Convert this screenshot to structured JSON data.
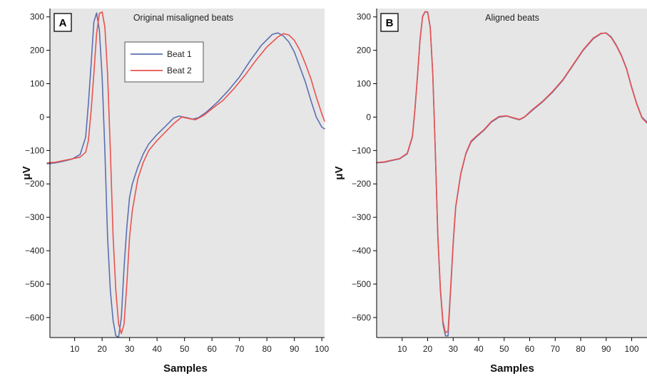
{
  "chart_data": [
    {
      "type": "line",
      "panel_label": "A",
      "title": "Original misaligned beats",
      "xlabel": "Samples",
      "ylabel": "μV",
      "xlim": [
        1,
        101
      ],
      "ylim": [
        -660,
        325
      ],
      "xticks": [
        10,
        20,
        30,
        40,
        50,
        60,
        70,
        80,
        90,
        100
      ],
      "yticks": [
        300,
        200,
        100,
        0,
        -100,
        -200,
        -300,
        -400,
        -500,
        -600
      ],
      "ytick_labels": [
        "300",
        "200",
        "100",
        "0",
        "−100",
        "−200",
        "−300",
        "−400",
        "−500",
        "−600"
      ],
      "grid": false,
      "legend": {
        "position": "top-center",
        "entries": [
          "Beat 1",
          "Beat 2"
        ]
      },
      "series": [
        {
          "name": "Beat 1",
          "color": "#5b6fb0",
          "points": [
            [
              0,
              -140
            ],
            [
              3,
              -137
            ],
            [
              6,
              -132
            ],
            [
              9,
              -126
            ],
            [
              12,
              -112
            ],
            [
              14,
              -60
            ],
            [
              15,
              40
            ],
            [
              16,
              160
            ],
            [
              17,
              285
            ],
            [
              18,
              312
            ],
            [
              19,
              260
            ],
            [
              20,
              120
            ],
            [
              21,
              -100
            ],
            [
              22,
              -360
            ],
            [
              23,
              -520
            ],
            [
              24,
              -610
            ],
            [
              25,
              -655
            ],
            [
              26,
              -658
            ],
            [
              27,
              -600
            ],
            [
              28,
              -450
            ],
            [
              29,
              -330
            ],
            [
              30,
              -240
            ],
            [
              31,
              -200
            ],
            [
              33,
              -150
            ],
            [
              35,
              -110
            ],
            [
              37,
              -80
            ],
            [
              40,
              -52
            ],
            [
              43,
              -28
            ],
            [
              46,
              -3
            ],
            [
              48,
              3
            ],
            [
              51,
              -2
            ],
            [
              53,
              -6
            ],
            [
              55,
              -2
            ],
            [
              58,
              15
            ],
            [
              62,
              45
            ],
            [
              66,
              80
            ],
            [
              70,
              120
            ],
            [
              74,
              170
            ],
            [
              78,
              215
            ],
            [
              82,
              248
            ],
            [
              84,
              252
            ],
            [
              86,
              243
            ],
            [
              88,
              225
            ],
            [
              90,
              195
            ],
            [
              92,
              150
            ],
            [
              94,
              105
            ],
            [
              96,
              50
            ],
            [
              98,
              0
            ],
            [
              100,
              -30
            ],
            [
              101,
              -35
            ]
          ]
        },
        {
          "name": "Beat 2",
          "color": "#e8524f",
          "points": [
            [
              0,
              -137
            ],
            [
              3,
              -135
            ],
            [
              6,
              -130
            ],
            [
              9,
              -125
            ],
            [
              12,
              -120
            ],
            [
              14,
              -105
            ],
            [
              15,
              -70
            ],
            [
              16,
              20
            ],
            [
              17,
              130
            ],
            [
              18,
              250
            ],
            [
              19,
              310
            ],
            [
              20,
              315
            ],
            [
              21,
              270
            ],
            [
              22,
              130
            ],
            [
              23,
              -100
            ],
            [
              24,
              -360
            ],
            [
              25,
              -520
            ],
            [
              26,
              -620
            ],
            [
              27,
              -648
            ],
            [
              28,
              -620
            ],
            [
              29,
              -500
            ],
            [
              30,
              -360
            ],
            [
              31,
              -280
            ],
            [
              33,
              -185
            ],
            [
              35,
              -135
            ],
            [
              37,
              -100
            ],
            [
              40,
              -70
            ],
            [
              43,
              -45
            ],
            [
              46,
              -20
            ],
            [
              49,
              0
            ],
            [
              52,
              -5
            ],
            [
              54,
              -8
            ],
            [
              57,
              5
            ],
            [
              60,
              25
            ],
            [
              64,
              50
            ],
            [
              68,
              85
            ],
            [
              72,
              125
            ],
            [
              76,
              170
            ],
            [
              80,
              210
            ],
            [
              84,
              240
            ],
            [
              86,
              250
            ],
            [
              88,
              246
            ],
            [
              90,
              230
            ],
            [
              92,
              200
            ],
            [
              94,
              160
            ],
            [
              96,
              115
            ],
            [
              98,
              60
            ],
            [
              100,
              10
            ],
            [
              101,
              -12
            ]
          ]
        }
      ]
    },
    {
      "type": "line",
      "panel_label": "B",
      "title": "Aligned beats",
      "xlabel": "Samples",
      "ylabel": "μV",
      "xlim": [
        0,
        106
      ],
      "ylim": [
        -660,
        325
      ],
      "xticks": [
        10,
        20,
        30,
        40,
        50,
        60,
        70,
        80,
        90,
        100
      ],
      "yticks": [
        300,
        200,
        100,
        0,
        -100,
        -200,
        -300,
        -400,
        -500,
        -600
      ],
      "ytick_labels": [
        "300",
        "200",
        "100",
        "0",
        "−100",
        "−200",
        "−300",
        "−400",
        "−500",
        "−600"
      ],
      "grid": false,
      "series": [
        {
          "name": "Beat 1",
          "color": "#5b6fb0",
          "points": [
            [
              0,
              -137
            ],
            [
              3,
              -135
            ],
            [
              6,
              -130
            ],
            [
              9,
              -125
            ],
            [
              12,
              -110
            ],
            [
              14,
              -60
            ],
            [
              15,
              20
            ],
            [
              16,
              120
            ],
            [
              17,
              230
            ],
            [
              18,
              300
            ],
            [
              19,
              315
            ],
            [
              20,
              315
            ],
            [
              21,
              270
            ],
            [
              22,
              130
            ],
            [
              23,
              -100
            ],
            [
              24,
              -360
            ],
            [
              25,
              -520
            ],
            [
              26,
              -620
            ],
            [
              27,
              -655
            ],
            [
              28,
              -655
            ],
            [
              29,
              -520
            ],
            [
              30,
              -380
            ],
            [
              31,
              -270
            ],
            [
              33,
              -170
            ],
            [
              35,
              -110
            ],
            [
              37,
              -75
            ],
            [
              39,
              -60
            ],
            [
              42,
              -40
            ],
            [
              45,
              -15
            ],
            [
              48,
              0
            ],
            [
              51,
              3
            ],
            [
              54,
              -4
            ],
            [
              56,
              -8
            ],
            [
              58,
              0
            ],
            [
              61,
              20
            ],
            [
              65,
              45
            ],
            [
              69,
              75
            ],
            [
              73,
              110
            ],
            [
              77,
              155
            ],
            [
              81,
              200
            ],
            [
              85,
              235
            ],
            [
              88,
              250
            ],
            [
              90,
              252
            ],
            [
              92,
              240
            ],
            [
              94,
              215
            ],
            [
              96,
              185
            ],
            [
              98,
              145
            ],
            [
              100,
              90
            ],
            [
              102,
              40
            ],
            [
              104,
              0
            ],
            [
              106,
              -15
            ]
          ]
        },
        {
          "name": "Beat 2",
          "color": "#e8524f",
          "points": [
            [
              0,
              -136
            ],
            [
              3,
              -134
            ],
            [
              6,
              -129
            ],
            [
              9,
              -124
            ],
            [
              12,
              -108
            ],
            [
              14,
              -58
            ],
            [
              15,
              22
            ],
            [
              16,
              122
            ],
            [
              17,
              232
            ],
            [
              18,
              302
            ],
            [
              19,
              316
            ],
            [
              20,
              313
            ],
            [
              21,
              268
            ],
            [
              22,
              128
            ],
            [
              23,
              -98
            ],
            [
              24,
              -355
            ],
            [
              25,
              -515
            ],
            [
              26,
              -612
            ],
            [
              27,
              -646
            ],
            [
              28,
              -640
            ],
            [
              29,
              -512
            ],
            [
              30,
              -375
            ],
            [
              31,
              -268
            ],
            [
              33,
              -168
            ],
            [
              35,
              -108
            ],
            [
              37,
              -72
            ],
            [
              39,
              -58
            ],
            [
              42,
              -38
            ],
            [
              45,
              -13
            ],
            [
              48,
              2
            ],
            [
              51,
              4
            ],
            [
              54,
              -3
            ],
            [
              56,
              -7
            ],
            [
              58,
              1
            ],
            [
              61,
              22
            ],
            [
              65,
              47
            ],
            [
              69,
              77
            ],
            [
              73,
              112
            ],
            [
              77,
              157
            ],
            [
              81,
              202
            ],
            [
              85,
              237
            ],
            [
              88,
              251
            ],
            [
              90,
              251
            ],
            [
              92,
              238
            ],
            [
              94,
              213
            ],
            [
              96,
              183
            ],
            [
              98,
              143
            ],
            [
              100,
              88
            ],
            [
              102,
              38
            ],
            [
              104,
              -2
            ],
            [
              106,
              -18
            ]
          ]
        }
      ]
    }
  ]
}
